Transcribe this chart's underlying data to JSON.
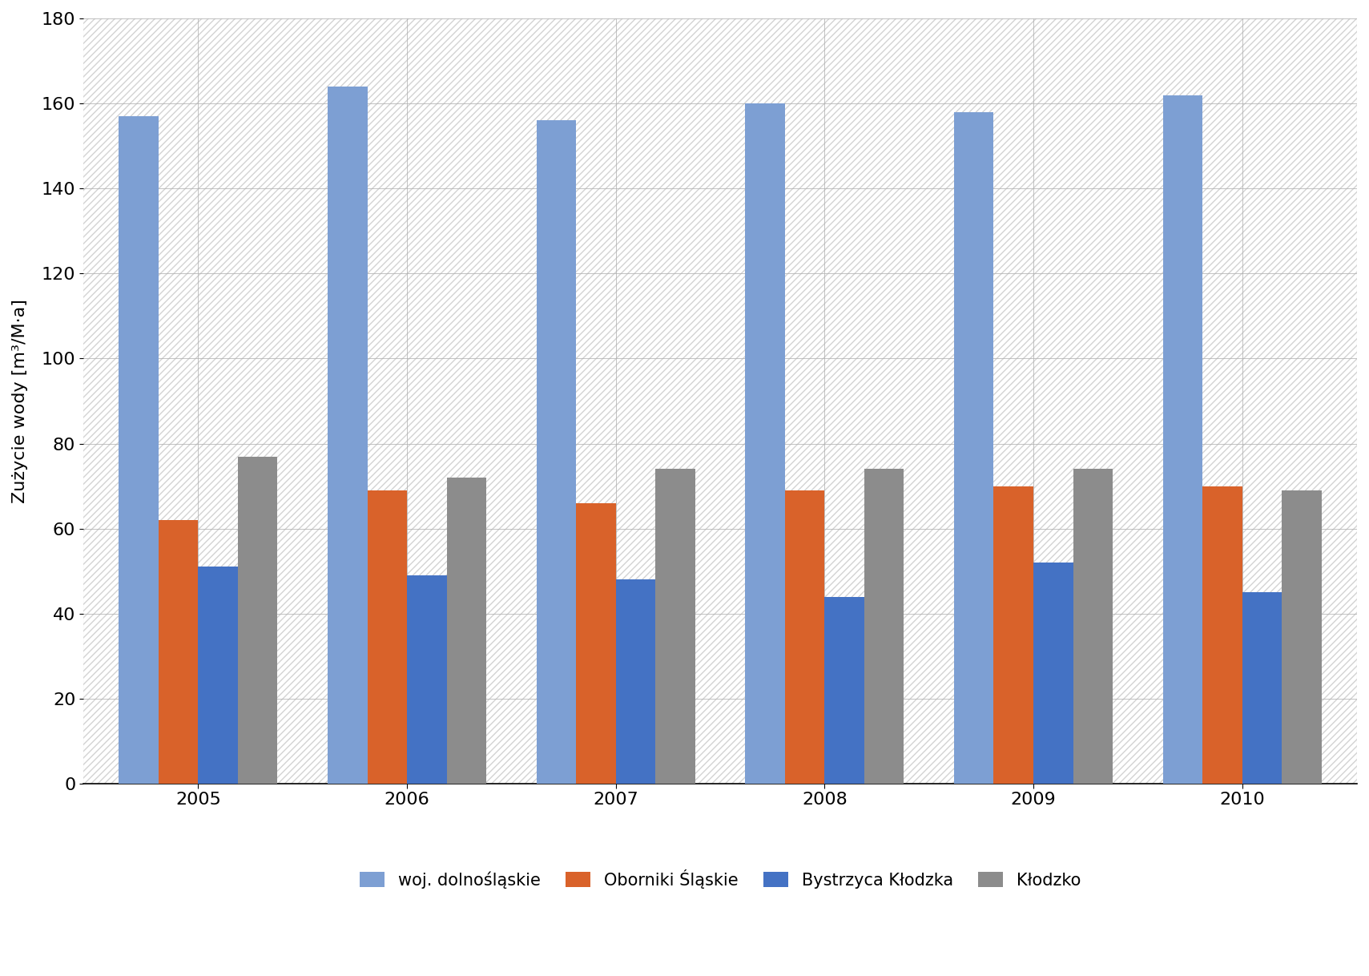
{
  "years": [
    "2005",
    "2006",
    "2007",
    "2008",
    "2009",
    "2010"
  ],
  "series": {
    "woj. dolnośląskie": [
      157,
      164,
      156,
      160,
      158,
      162
    ],
    "Oborniki Śląskie": [
      62,
      69,
      66,
      69,
      70,
      70
    ],
    "Bystrzyca Kłodzka": [
      51,
      49,
      48,
      44,
      52,
      45
    ],
    "Kłodzko": [
      77,
      72,
      74,
      74,
      74,
      69
    ]
  },
  "colors": {
    "woj. dolnośląskie": "#7D9FD3",
    "Oborniki Śląskie": "#D9622A",
    "Bystrzyca Kłodzka": "#4472C4",
    "Kłodzko": "#8C8C8C"
  },
  "ylabel": "Zużycie wody [m³/M·a]",
  "ylim": [
    0,
    180
  ],
  "yticks": [
    0,
    20,
    40,
    60,
    80,
    100,
    120,
    140,
    160,
    180
  ],
  "bar_width": 0.19,
  "background_color": "#ffffff",
  "grid_color": "#b0b0b0",
  "legend_labels": [
    "woj. dolnośląskie",
    "Oborniki Śląskie",
    "Bystrzyca Kłodzka",
    "Kłodzko"
  ]
}
